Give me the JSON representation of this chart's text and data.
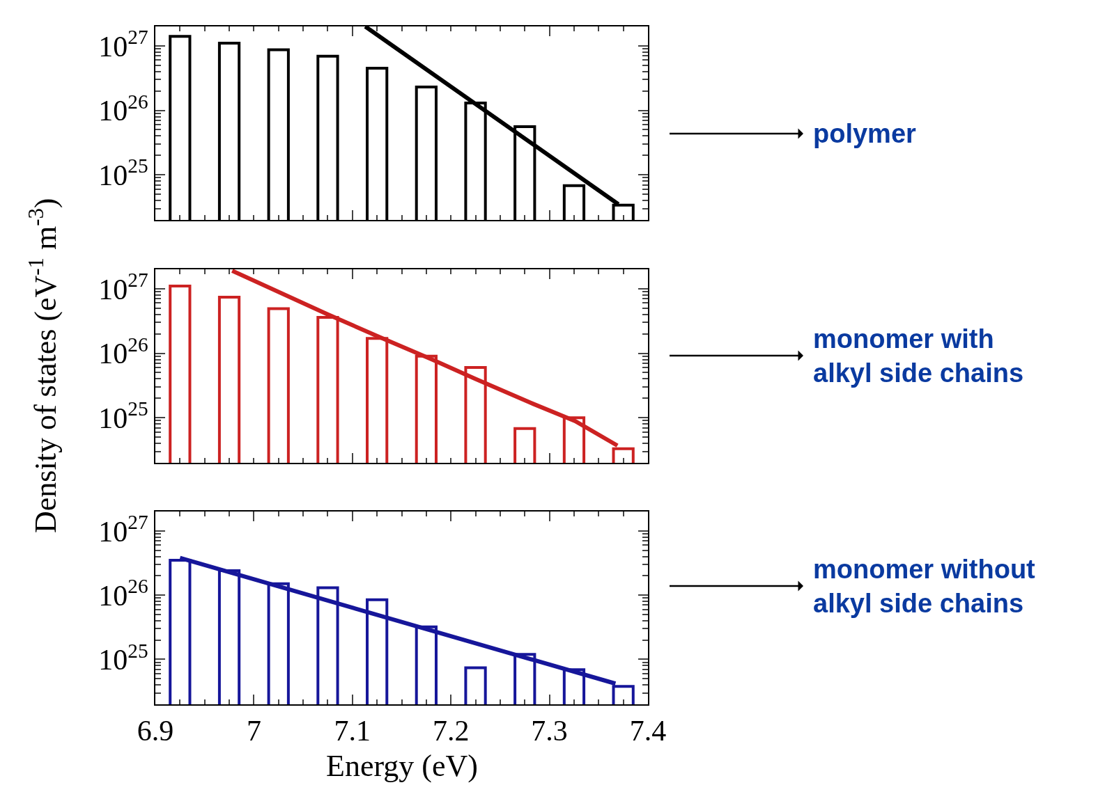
{
  "chart_data": [
    {
      "type": "bar",
      "log": true,
      "xlim": [
        6.9,
        7.4
      ],
      "ylim": [
        2e+24,
        2e+27
      ],
      "tick_labels": "y",
      "xticks": [
        6.9,
        7,
        7.1,
        7.2,
        7.3,
        7.4
      ],
      "yticks": [
        {
          "value": 1e+25,
          "label": "10$^{25}$"
        },
        {
          "value": 1e+26,
          "label": "10$^{26}$"
        },
        {
          "value": 1e+27,
          "label": "10$^{27}$"
        }
      ],
      "series": [
        {
          "color": "#000000",
          "x": [
            6.925,
            6.975,
            7.025,
            7.075,
            7.125,
            7.175,
            7.225,
            7.275,
            7.325,
            7.375
          ],
          "values": [
            1.4e+27,
            1.1e+27,
            8.7e+26,
            6.9e+26,
            4.5e+26,
            2.3e+26,
            1.3e+26,
            5.6e+25,
            6.8e+24,
            3.4e+24
          ]
        },
        {
          "type": "line",
          "color": "#000000",
          "x": [
            7.113,
            7.37
          ],
          "values": [
            2e+27,
            3.5e+24
          ]
        }
      ],
      "annotations": [
        "polymer"
      ]
    },
    {
      "type": "bar",
      "log": true,
      "xlim": [
        6.9,
        7.4
      ],
      "ylim": [
        2e+24,
        2e+27
      ],
      "tick_labels": "y",
      "xticks": [
        6.9,
        7,
        7.1,
        7.2,
        7.3,
        7.4
      ],
      "yticks": [
        {
          "value": 1e+25,
          "label": "10$^{25}$"
        },
        {
          "value": 1e+26,
          "label": "10$^{26}$"
        },
        {
          "value": 1e+27,
          "label": "10$^{27}$"
        }
      ],
      "ylabel": "Density of states (eV$^{-1}$ m$^{-3}$)",
      "series": [
        {
          "color": "#cc2222",
          "x": [
            6.925,
            6.975,
            7.025,
            7.075,
            7.125,
            7.175,
            7.225,
            7.275,
            7.325,
            7.375
          ],
          "values": [
            1.1e+27,
            7.4e+26,
            4.9e+26,
            3.6e+26,
            1.7e+26,
            9e+25,
            6e+25,
            6.8e+24,
            1e+25,
            3.3e+24
          ]
        },
        {
          "type": "line",
          "color": "#cc2222",
          "x": [
            6.978,
            7.075,
            7.127,
            7.18,
            7.225,
            7.281,
            7.326,
            7.369
          ],
          "values": [
            1.9e+27,
            4e+26,
            1.8e+26,
            8.1e+25,
            4e+25,
            1.7e+25,
            8.9e+24,
            3.7e+24
          ]
        }
      ],
      "annotations": [
        "monomer with\nalkyl side chains"
      ]
    },
    {
      "type": "bar",
      "log": true,
      "xlim": [
        6.9,
        7.4
      ],
      "ylim": [
        2e+24,
        2e+27
      ],
      "xticks": [
        6.9,
        7,
        7.1,
        7.2,
        7.3,
        7.4
      ],
      "yticks": [
        {
          "value": 1e+25,
          "label": "10$^{25}$"
        },
        {
          "value": 1e+26,
          "label": "10$^{26}$"
        },
        {
          "value": 1e+27,
          "label": "10$^{27}$"
        }
      ],
      "xlabel": "Energy (eV)",
      "series": [
        {
          "color": "#16169a",
          "x": [
            6.925,
            6.975,
            7.025,
            7.075,
            7.125,
            7.175,
            7.225,
            7.275,
            7.325,
            7.375
          ],
          "values": [
            3.5e+26,
            2.4e+26,
            1.5e+26,
            1.3e+26,
            8.5e+25,
            3.2e+25,
            7.4e+24,
            1.2e+25,
            6.9e+24,
            3.8e+24
          ]
        },
        {
          "type": "line",
          "color": "#16169a",
          "x": [
            6.925,
            7.367
          ],
          "values": [
            3.8e+26,
            4.2e+24
          ]
        }
      ],
      "annotations": [
        "monomer without\nalkyl side chains"
      ]
    }
  ]
}
